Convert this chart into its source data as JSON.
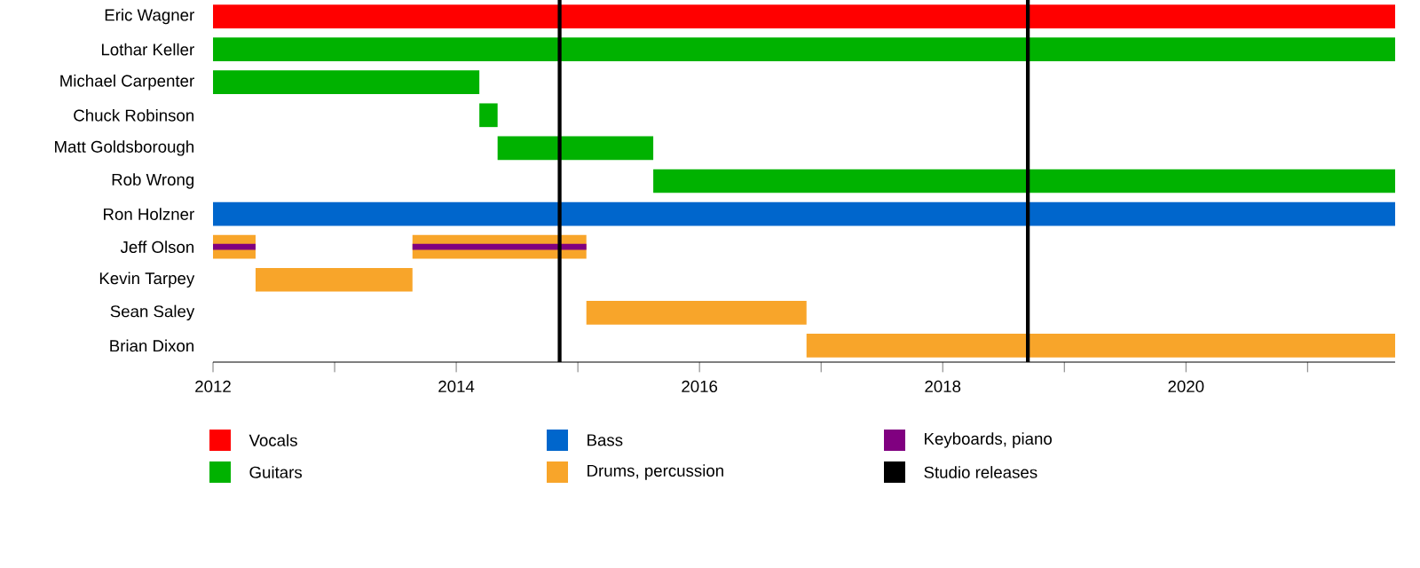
{
  "chart_data": {
    "type": "bar",
    "orientation": "horizontal",
    "legend": "bottom",
    "categories": [
      "Eric Wagner",
      "Lothar Keller",
      "Michael Carpenter",
      "Chuck Robinson",
      "Matt Goldsborough",
      "Rob Wrong",
      "Ron Holzner",
      "Jeff Olson",
      "Kevin Tarpey",
      "Sean Saley",
      "Brian Dixon"
    ],
    "series": [
      {
        "name": "Vocals",
        "color": "#ff0000",
        "base": [
          2012,
          null,
          null,
          null,
          null,
          null,
          null,
          null,
          null,
          null,
          null
        ],
        "values": [
          9.72,
          null,
          null,
          null,
          null,
          null,
          null,
          null,
          null,
          null,
          null
        ]
      },
      {
        "name": "Guitars",
        "color": "#00b200",
        "base": [
          null,
          2012,
          2012,
          2014.19,
          2014.34,
          2015.62,
          null,
          null,
          null,
          null,
          null
        ],
        "values": [
          null,
          9.72,
          2.19,
          0.15,
          1.28,
          6.1,
          null,
          null,
          null,
          null,
          null
        ]
      },
      {
        "name": "Bass",
        "color": "#0066cc",
        "base": [
          null,
          null,
          null,
          null,
          null,
          null,
          2012,
          null,
          null,
          null,
          null
        ],
        "values": [
          null,
          null,
          null,
          null,
          null,
          null,
          9.72,
          null,
          null,
          null,
          null
        ]
      },
      {
        "name": "Drums, percussion",
        "color": "#f8a52a",
        "base": [
          null,
          null,
          null,
          null,
          null,
          null,
          null,
          2012,
          2012.35,
          2015.07,
          2016.88
        ],
        "values": [
          null,
          null,
          null,
          null,
          null,
          null,
          null,
          0.35,
          1.29,
          1.81,
          4.84
        ]
      },
      {
        "color": "#f8a52a",
        "base": [
          null,
          null,
          null,
          null,
          null,
          null,
          null,
          2013.64,
          null,
          null,
          null
        ],
        "values": [
          null,
          null,
          null,
          null,
          null,
          null,
          null,
          1.43,
          null,
          null,
          null
        ]
      },
      {
        "name": "Keyboards, piano",
        "color": "#800080",
        "base": [
          null,
          null,
          null,
          null,
          null,
          null,
          null,
          2012,
          null,
          null,
          null
        ],
        "values": [
          null,
          null,
          null,
          null,
          null,
          null,
          null,
          0.35,
          null,
          null,
          null
        ]
      },
      {
        "color": "#800080",
        "base": [
          null,
          null,
          null,
          null,
          null,
          null,
          null,
          2013.64,
          null,
          null,
          null
        ],
        "values": [
          null,
          null,
          null,
          null,
          null,
          null,
          null,
          1.43,
          null,
          null,
          null
        ]
      }
    ],
    "ref_lines": [
      {
        "axis": "x",
        "value": 2014.85,
        "label": "Studio releases",
        "color": "#000000"
      },
      {
        "axis": "x",
        "value": 2018.7,
        "color": "#000000"
      }
    ],
    "xlim": [
      2012,
      2021.72
    ],
    "xticks": [
      2012,
      {
        "value": 2013,
        "label": null
      },
      2014,
      {
        "value": 2015,
        "label": null
      },
      2016,
      {
        "value": 2017,
        "label": null
      },
      2018,
      {
        "value": 2019,
        "label": null
      },
      2020,
      {
        "value": 2021,
        "label": null
      }
    ]
  }
}
